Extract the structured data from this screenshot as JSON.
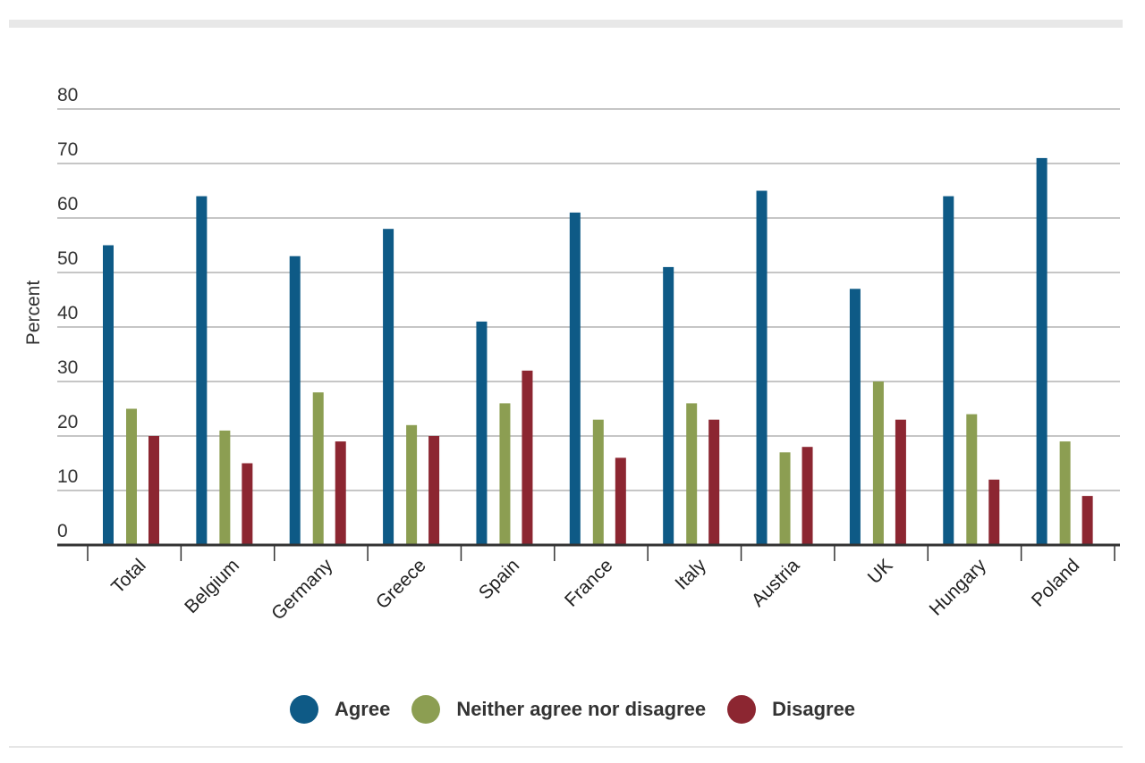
{
  "chart_data": {
    "type": "bar",
    "ylabel": "Percent",
    "xlabel": "",
    "ylim": [
      0,
      80
    ],
    "yticks": [
      0,
      10,
      20,
      30,
      40,
      50,
      60,
      70,
      80
    ],
    "grid": true,
    "legend_position": "bottom",
    "categories": [
      "Total",
      "Belgium",
      "Germany",
      "Greece",
      "Spain",
      "France",
      "Italy",
      "Austria",
      "UK",
      "Hungary",
      "Poland"
    ],
    "series": [
      {
        "name": "Agree",
        "color": "#0e5a86",
        "values": [
          55,
          64,
          53,
          58,
          41,
          61,
          51,
          65,
          47,
          64,
          71
        ]
      },
      {
        "name": "Neither agree nor disagree",
        "color": "#8c9e52",
        "values": [
          25,
          21,
          28,
          22,
          26,
          23,
          26,
          17,
          30,
          24,
          19
        ]
      },
      {
        "name": "Disagree",
        "color": "#8c2631",
        "values": [
          20,
          15,
          19,
          20,
          32,
          16,
          23,
          18,
          23,
          12,
          9
        ]
      }
    ]
  }
}
